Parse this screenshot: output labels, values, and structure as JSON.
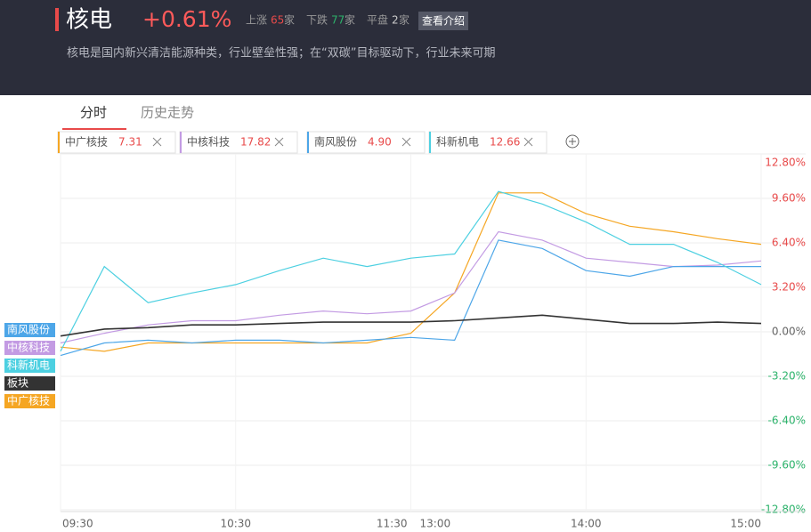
{
  "header": {
    "title": "核电",
    "change": "+0.61%",
    "up_label": "上涨",
    "up_count": "65",
    "down_label": "下跌",
    "down_count": "77",
    "flat_label": "平盘",
    "flat_count": "2",
    "unit": "家",
    "intro_button": "查看介绍",
    "description": "核电是国内新兴清洁能源种类，行业壁垒性强；在“双碳”目标驱动下，行业未来可期"
  },
  "tabs": [
    "分时",
    "历史走势"
  ],
  "chart_data": {
    "type": "line",
    "x": [
      "09:30",
      "09:45",
      "10:00",
      "10:15",
      "10:30",
      "10:45",
      "11:00",
      "11:15",
      "11:30",
      "13:15",
      "13:30",
      "13:45",
      "14:00",
      "14:15",
      "14:30",
      "14:45",
      "15:00"
    ],
    "xticks": [
      "09:30",
      "10:30",
      "11:30",
      "13:00",
      "14:00",
      "15:00"
    ],
    "ylim": [
      -12.8,
      12.8
    ],
    "yticks": [
      {
        "value": 12.8,
        "label": "12.80%"
      },
      {
        "value": 9.6,
        "label": "9.60%"
      },
      {
        "value": 6.4,
        "label": "6.40%"
      },
      {
        "value": 3.2,
        "label": "3.20%"
      },
      {
        "value": 0,
        "label": "0.00%"
      },
      {
        "value": -3.2,
        "label": "-3.20%"
      },
      {
        "value": -6.4,
        "label": "-6.40%"
      },
      {
        "value": -9.6,
        "label": "-9.60%"
      },
      {
        "value": -12.8,
        "label": "-12.80%"
      }
    ],
    "grid": true,
    "series": [
      {
        "name": "中广核技",
        "color": "#f5a623",
        "price": "7.31",
        "values": [
          -1.1,
          -1.4,
          -0.8,
          -0.8,
          -0.8,
          -0.8,
          -0.8,
          -0.8,
          -0.1,
          2.8,
          10.0,
          10.0,
          8.5,
          7.6,
          7.2,
          6.7,
          6.3
        ]
      },
      {
        "name": "中核科技",
        "color": "#c39be3",
        "price": "17.82",
        "values": [
          -0.8,
          -0.1,
          0.5,
          0.8,
          0.8,
          1.2,
          1.5,
          1.3,
          1.5,
          2.8,
          7.2,
          6.6,
          5.3,
          5.0,
          4.7,
          4.8,
          5.1
        ]
      },
      {
        "name": "南风股份",
        "color": "#4da6e8",
        "price": "4.90",
        "values": [
          -1.7,
          -0.8,
          -0.6,
          -0.8,
          -0.6,
          -0.6,
          -0.8,
          -0.6,
          -0.4,
          -0.6,
          6.6,
          6.0,
          4.4,
          4.0,
          4.7,
          4.7,
          4.7
        ]
      },
      {
        "name": "科新机电",
        "color": "#4dd0e1",
        "price": "12.66",
        "values": [
          -1.4,
          4.7,
          2.1,
          2.8,
          3.4,
          4.4,
          5.3,
          4.7,
          5.3,
          5.6,
          10.1,
          9.2,
          7.9,
          6.3,
          6.3,
          5.0,
          3.4
        ]
      },
      {
        "name": "板块",
        "color": "#333333",
        "values": [
          -0.3,
          0.2,
          0.3,
          0.5,
          0.5,
          0.6,
          0.7,
          0.7,
          0.7,
          0.8,
          1.0,
          1.2,
          0.9,
          0.6,
          0.6,
          0.7,
          0.6
        ]
      }
    ]
  }
}
